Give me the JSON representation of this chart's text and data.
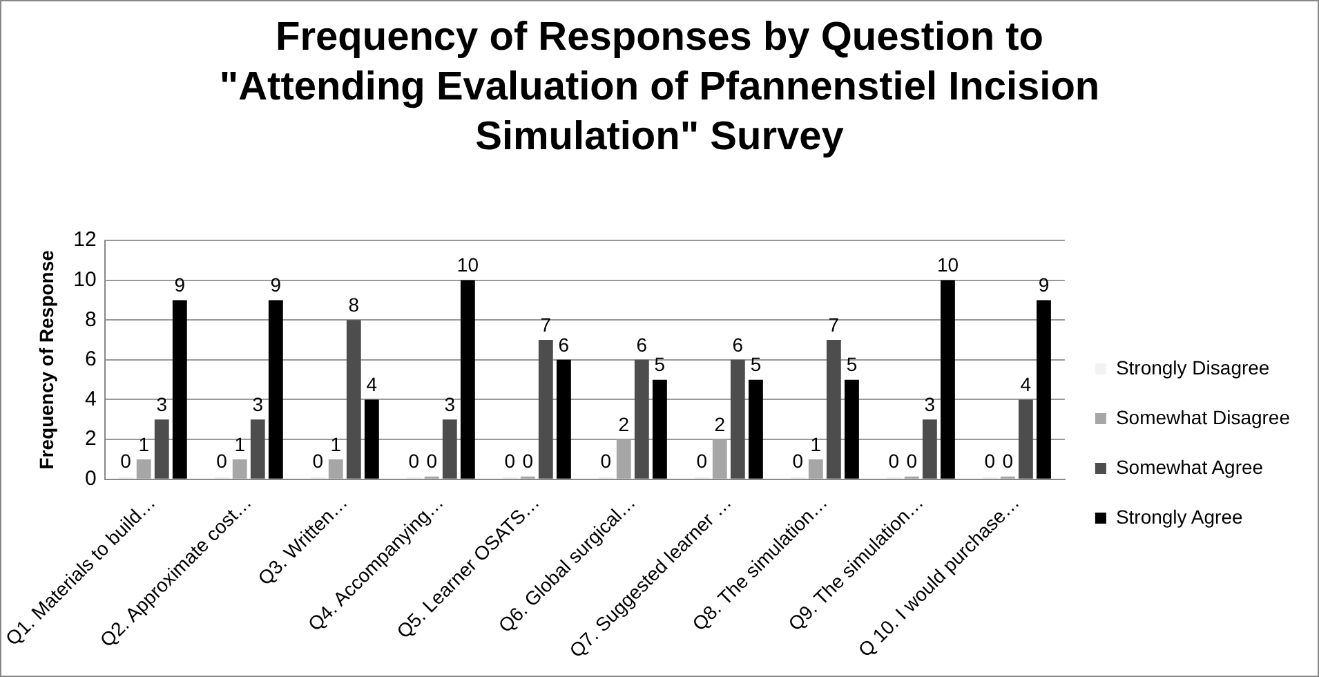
{
  "chart_data": {
    "type": "bar",
    "title": "Frequency of Responses by Question to \"Attending Evaluation of Pfannenstiel Incision Simulation\" Survey",
    "ylabel": "Frequency of Response",
    "categories": [
      "Q1. Materials to build…",
      "Q2. Approximate cost…",
      "Q3. Written…",
      "Q4. Accompanying…",
      "Q5. Learner OSATS…",
      "Q6. Global surgical…",
      "Q7. Suggested learner …",
      "Q8. The simulation…",
      "Q9. The simulation…",
      "Q 10. I would purchase…"
    ],
    "series": [
      {
        "name": "Strongly Disagree",
        "color": "#f2f2f2",
        "values": [
          0,
          0,
          0,
          0,
          0,
          0,
          0,
          0,
          0,
          0
        ]
      },
      {
        "name": "Somewhat Disagree",
        "color": "#a6a6a6",
        "values": [
          1,
          1,
          1,
          0,
          0,
          2,
          2,
          1,
          0,
          0
        ]
      },
      {
        "name": "Somewhat Agree",
        "color": "#4d4d4d",
        "values": [
          3,
          3,
          8,
          3,
          7,
          6,
          6,
          7,
          3,
          4
        ]
      },
      {
        "name": "Strongly Agree",
        "color": "#000000",
        "values": [
          9,
          9,
          4,
          10,
          6,
          5,
          5,
          5,
          10,
          9
        ]
      }
    ],
    "ylim": [
      0,
      12
    ],
    "yticks": [
      0,
      2,
      4,
      6,
      8,
      10,
      12
    ],
    "grid": "y",
    "legend": "right",
    "data_labels": true
  }
}
